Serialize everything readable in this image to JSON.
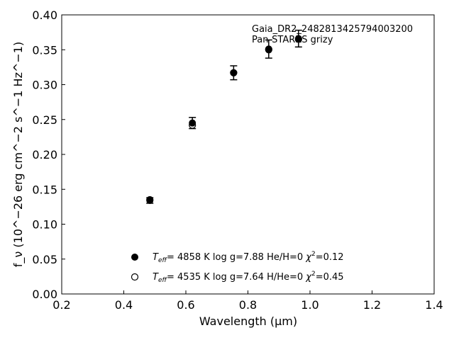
{
  "chart_data": {
    "type": "scatter",
    "xlabel": "Wavelength (μm)",
    "ylabel": "f_ν (10^−26 erg cm^−2 s^−1 Hz^−1)",
    "xlim": [
      0.2,
      1.4
    ],
    "ylim": [
      0.0,
      0.4
    ],
    "x_ticks": [
      0.2,
      0.4,
      0.6,
      0.8,
      1.0,
      1.2,
      1.4
    ],
    "y_ticks": [
      0.0,
      0.05,
      0.1,
      0.15,
      0.2,
      0.25,
      0.3,
      0.35,
      0.4
    ],
    "x_tick_labels": [
      "0.2",
      "0.4",
      "0.6",
      "0.8",
      "1.0",
      "1.2",
      "1.4"
    ],
    "y_tick_labels": [
      "0.00",
      "0.05",
      "0.10",
      "0.15",
      "0.20",
      "0.25",
      "0.30",
      "0.35",
      "0.40"
    ],
    "grid": false,
    "annotation": {
      "line1": "Gaia_DR2_2482813425794003200",
      "line2": "Pan-STARRS grizy"
    },
    "observed": {
      "x": [
        0.484,
        0.621,
        0.754,
        0.867,
        0.963
      ],
      "y": [
        0.134,
        0.245,
        0.317,
        0.351,
        0.366
      ],
      "yerr": [
        0.004,
        0.008,
        0.01,
        0.013,
        0.012
      ]
    },
    "series": [
      {
        "marker": "filled",
        "x": [
          0.484,
          0.621,
          0.754,
          0.867,
          0.963
        ],
        "y": [
          0.134,
          0.245,
          0.317,
          0.351,
          0.366
        ]
      },
      {
        "marker": "open",
        "x": [
          0.484,
          0.621,
          0.754,
          0.867,
          0.963
        ],
        "y": [
          0.135,
          0.242,
          0.317,
          0.35,
          0.365
        ]
      }
    ],
    "legend": [
      {
        "marker": "filled",
        "teff_label": "T",
        "teff_sub": "eff",
        "text": "=  4858 K  log g=7.88  He/H=0  ",
        "chi_label": "χ",
        "chi_sup": "2",
        "chi_text": "=0.12"
      },
      {
        "marker": "open",
        "teff_label": "T",
        "teff_sub": "eff",
        "text": "=  4535 K  log g=7.64  H/He=0  ",
        "chi_label": "χ",
        "chi_sup": "2",
        "chi_text": "=0.45"
      }
    ],
    "legend_position": "lower-left",
    "colors": {
      "marker": "#000000",
      "axis": "#000000",
      "background": "#ffffff"
    }
  }
}
